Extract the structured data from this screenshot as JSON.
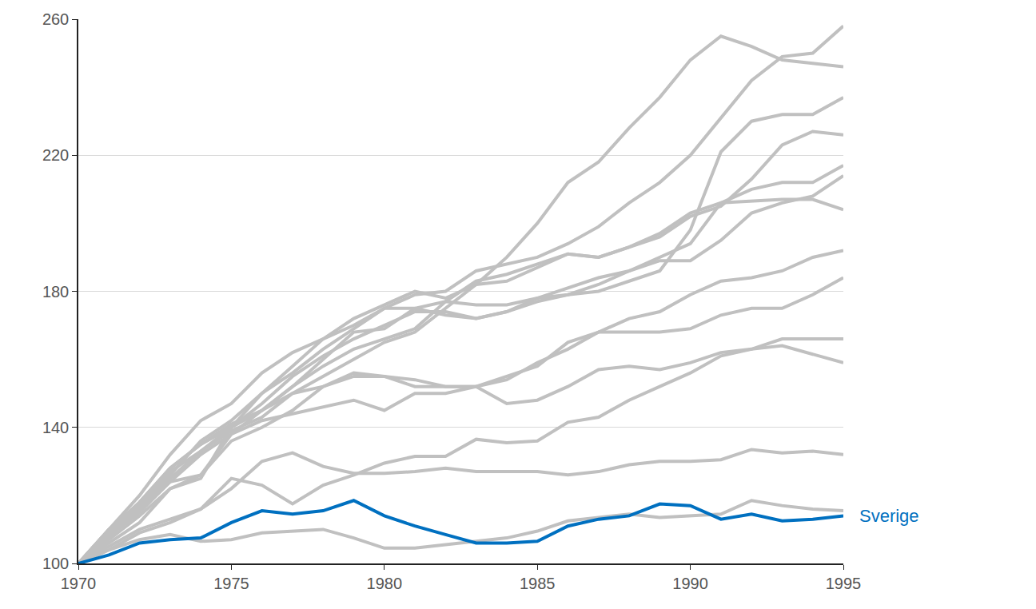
{
  "chart_data": {
    "type": "line",
    "x": [
      1970,
      1971,
      1972,
      1973,
      1974,
      1975,
      1976,
      1977,
      1978,
      1979,
      1980,
      1981,
      1982,
      1983,
      1984,
      1985,
      1986,
      1987,
      1988,
      1989,
      1990,
      1991,
      1992,
      1993,
      1994,
      1995
    ],
    "xlim": [
      1970,
      1995
    ],
    "xticks": [
      1970,
      1975,
      1980,
      1985,
      1990,
      1995
    ],
    "ylim": [
      100,
      260
    ],
    "yticks": [
      100,
      140,
      180,
      220,
      260
    ],
    "grid": true,
    "series": [
      {
        "color": "#c0c0c0",
        "values": [
          100,
          110,
          120,
          132,
          142,
          147,
          156,
          162,
          166,
          172,
          176,
          180,
          178,
          182,
          190,
          200,
          212,
          218,
          228,
          237,
          248,
          255,
          252,
          248,
          247,
          246
        ]
      },
      {
        "color": "#c0c0c0",
        "values": [
          100,
          108,
          116,
          126,
          136,
          142,
          150,
          156,
          163,
          169,
          175,
          179,
          180,
          186,
          188,
          190,
          194,
          199,
          206,
          212,
          220,
          231,
          242,
          249,
          250,
          258
        ]
      },
      {
        "color": "#c0c0c0",
        "values": [
          100,
          109,
          118,
          128,
          135,
          140,
          145,
          152,
          160,
          168,
          169,
          175,
          177,
          176,
          176,
          178,
          179,
          180,
          183,
          186,
          198,
          221,
          230,
          232,
          232,
          237
        ]
      },
      {
        "color": "#c0c0c0",
        "values": [
          100,
          108,
          115,
          124,
          126,
          138,
          145,
          152,
          158,
          163,
          166,
          169,
          177,
          183,
          185,
          188,
          191,
          190,
          193,
          196,
          202,
          205,
          213,
          223,
          227,
          226
        ]
      },
      {
        "color": "#c0c0c0",
        "values": [
          100,
          110,
          117,
          127,
          133,
          140,
          147,
          155,
          161,
          166,
          170,
          174,
          174,
          172,
          174,
          177,
          179,
          182,
          186,
          190,
          194,
          206,
          210,
          212,
          212,
          217
        ]
      },
      {
        "color": "#c0c0c0",
        "values": [
          100,
          106,
          112,
          122,
          125,
          140,
          150,
          158,
          166,
          170,
          175,
          175,
          173,
          172,
          174,
          178,
          181,
          184,
          186,
          189,
          189,
          195,
          203,
          206,
          208,
          214
        ]
      },
      {
        "color": "#c0c0c0",
        "values": [
          100,
          109,
          117,
          125,
          133,
          139,
          143,
          150,
          155,
          160,
          165,
          168,
          175,
          182,
          183,
          187,
          191,
          190,
          193,
          197,
          203,
          206,
          206.5,
          207,
          207,
          204
        ]
      },
      {
        "color": "#c0c0c0",
        "values": [
          100,
          107,
          114,
          122,
          126,
          136,
          140,
          145,
          152,
          156,
          155,
          152,
          152,
          152,
          155,
          158,
          165,
          168,
          172,
          174,
          179,
          183,
          184,
          186,
          190,
          192
        ]
      },
      {
        "color": "#c0c0c0",
        "values": [
          100,
          108,
          116,
          124,
          132,
          138,
          142,
          144,
          146,
          148,
          145,
          150,
          150,
          152,
          154,
          159,
          163,
          168,
          168,
          168,
          169,
          173,
          175,
          175,
          179,
          184
        ]
      },
      {
        "color": "#c0c0c0",
        "values": [
          100,
          110,
          118,
          128,
          135,
          141,
          145,
          150,
          152,
          155,
          155,
          154,
          152,
          152,
          147,
          148,
          152,
          157,
          158,
          157,
          159,
          162,
          163,
          166,
          166,
          166
        ]
      },
      {
        "color": "#c0c0c0",
        "values": [
          100,
          105,
          110,
          113,
          116,
          125,
          123,
          117.5,
          123,
          126,
          129.5,
          131.5,
          131.5,
          136.5,
          135.5,
          136,
          141.5,
          143,
          148,
          152,
          156,
          161,
          163,
          164,
          161.5,
          159
        ]
      },
      {
        "color": "#c0c0c0",
        "values": [
          100,
          104,
          109,
          112,
          116,
          122,
          130,
          132.5,
          128.5,
          126.5,
          126.5,
          127,
          128,
          127,
          127,
          127,
          126,
          127,
          129,
          130,
          130,
          130.5,
          133.5,
          132.5,
          133,
          132
        ]
      },
      {
        "color": "#c0c0c0",
        "values": [
          100,
          104,
          107,
          108.5,
          106.5,
          107,
          109,
          109.5,
          110,
          107.5,
          104.5,
          104.5,
          105.5,
          106.5,
          107.5,
          109.5,
          112.5,
          113.5,
          114.5,
          113.5,
          114,
          114.5,
          118.5,
          117,
          116,
          115.5
        ]
      },
      {
        "name": "Sverige",
        "color": "#0070c0",
        "values": [
          100,
          102.5,
          106,
          107,
          107.5,
          112,
          115.5,
          114.5,
          115.5,
          118.5,
          114,
          111,
          108.5,
          106,
          106,
          106.5,
          111,
          113,
          114,
          117.5,
          117,
          113,
          114.5,
          112.5,
          113,
          114
        ]
      }
    ]
  }
}
